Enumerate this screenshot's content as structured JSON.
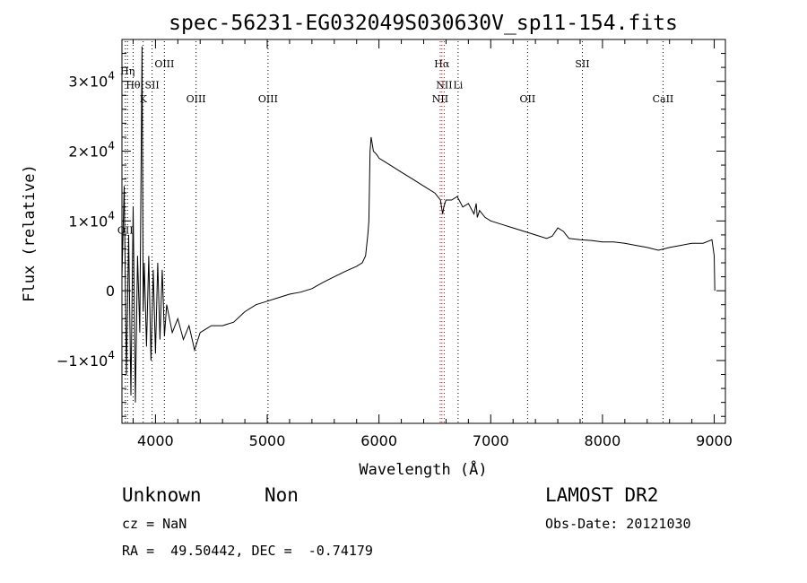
{
  "chart_data": {
    "type": "line",
    "title": "spec-56231-EG032049S030630V_sp11-154.fits",
    "xlabel": "Wavelength (Å)",
    "ylabel": "Flux (relative)",
    "xlim": [
      3700,
      9100
    ],
    "ylim": [
      -19000,
      36000
    ],
    "x_ticks": [
      {
        "value": 4000,
        "label": "4000"
      },
      {
        "value": 5000,
        "label": "5000"
      },
      {
        "value": 6000,
        "label": "6000"
      },
      {
        "value": 7000,
        "label": "7000"
      },
      {
        "value": 8000,
        "label": "8000"
      },
      {
        "value": 9000,
        "label": "9000"
      }
    ],
    "y_ticks": [
      {
        "value": -10000,
        "mant": "−1×10",
        "exp": "4"
      },
      {
        "value": 0,
        "mant": "0",
        "exp": ""
      },
      {
        "value": 10000,
        "mant": "1×10",
        "exp": "4"
      },
      {
        "value": 20000,
        "mant": "2×10",
        "exp": "4"
      },
      {
        "value": 30000,
        "mant": "3×10",
        "exp": "4"
      }
    ],
    "x_minor_step": 200,
    "y_minor_step": 2000,
    "spectrum": {
      "x": [
        3700,
        3720,
        3740,
        3760,
        3780,
        3800,
        3820,
        3840,
        3860,
        3880,
        3890,
        3900,
        3920,
        3940,
        3960,
        3980,
        4000,
        4020,
        4040,
        4060,
        4080,
        4100,
        4150,
        4200,
        4250,
        4300,
        4350,
        4400,
        4450,
        4500,
        4600,
        4700,
        4800,
        4900,
        5000,
        5100,
        5200,
        5300,
        5400,
        5500,
        5600,
        5700,
        5800,
        5850,
        5880,
        5900,
        5910,
        5920,
        5930,
        5940,
        5950,
        5980,
        6000,
        6050,
        6100,
        6200,
        6300,
        6400,
        6500,
        6550,
        6560,
        6570,
        6580,
        6600,
        6650,
        6700,
        6750,
        6800,
        6850,
        6870,
        6880,
        6900,
        6950,
        7000,
        7100,
        7200,
        7300,
        7400,
        7500,
        7550,
        7600,
        7650,
        7700,
        7800,
        7900,
        8000,
        8100,
        8200,
        8300,
        8400,
        8500,
        8550,
        8600,
        8700,
        8800,
        8900,
        8980,
        9000,
        9005
      ],
      "y": [
        2000,
        15000,
        -12000,
        8000,
        -15000,
        12000,
        -16000,
        5000,
        -6000,
        35000,
        -3000,
        4000,
        -8000,
        5000,
        -10000,
        3000,
        -9000,
        4000,
        -7000,
        3000,
        -6500,
        -2000,
        -6000,
        -4000,
        -7000,
        -5000,
        -8500,
        -6000,
        -5500,
        -5000,
        -5000,
        -4500,
        -3000,
        -2000,
        -1500,
        -1000,
        -500,
        -200,
        300,
        1200,
        2000,
        2800,
        3500,
        4000,
        5000,
        8000,
        10000,
        20000,
        22000,
        21000,
        20000,
        19500,
        19000,
        18500,
        18000,
        17000,
        16000,
        15000,
        14000,
        13000,
        12000,
        11000,
        12000,
        13000,
        13000,
        13500,
        12000,
        12500,
        11000,
        12500,
        10500,
        11500,
        10500,
        10000,
        9500,
        9000,
        8500,
        8000,
        7500,
        7800,
        9000,
        8500,
        7500,
        7300,
        7200,
        7000,
        7000,
        6800,
        6500,
        6200,
        5800,
        6000,
        6200,
        6500,
        6800,
        6800,
        7300,
        5000,
        0
      ]
    },
    "emission_lines": [
      {
        "x": 3730,
        "label": "OII",
        "label_y": 8200,
        "dotted_to": 8200
      },
      {
        "x": 3750,
        "label": "Hη",
        "label_y": 31000,
        "dotted_to": 31000
      },
      {
        "x": 3800,
        "label": "Hθ",
        "label_y": 29000,
        "dotted_to": 29000
      },
      {
        "x": 3890,
        "label": "K",
        "label_y": 27000,
        "dotted_to": 27000
      },
      {
        "x": 3970,
        "label": "SII",
        "label_y": 29000,
        "dotted_to": 29000
      },
      {
        "x": 4080,
        "label": "OIII",
        "label_y": 32000,
        "dotted_to": 32000
      },
      {
        "x": 4363,
        "label": "OIII",
        "label_y": 27000,
        "dotted_to": 27000
      },
      {
        "x": 5007,
        "label": "OIII",
        "label_y": 27000,
        "dotted_to": 27000
      },
      {
        "x": 6563,
        "label": "Hα",
        "label_y": 32000,
        "dotted_to": 32000
      },
      {
        "x": 6584,
        "label": "NII",
        "label_y": 29000,
        "dotted_to": 29000
      },
      {
        "x": 6548,
        "label": "NII",
        "label_y": 27000,
        "dotted_to": 27000
      },
      {
        "x": 6708,
        "label": "Li",
        "label_y": 29000,
        "dotted_to": 29000
      },
      {
        "x": 7330,
        "label": "OII",
        "label_y": 27000,
        "dotted_to": 27000
      },
      {
        "x": 7820,
        "label": "SII",
        "label_y": 32000,
        "dotted_to": 32000
      },
      {
        "x": 8542,
        "label": "CaII",
        "label_y": 27000,
        "dotted_to": 27000
      }
    ]
  },
  "info": {
    "class_label": "Unknown",
    "subclass_label": "Non",
    "cz_text": "cz = NaN",
    "radec_text": "RA =  49.50442, DEC =  -0.74179",
    "survey_label": "LAMOST DR2",
    "obs_date_text": "Obs-Date: 20121030"
  }
}
